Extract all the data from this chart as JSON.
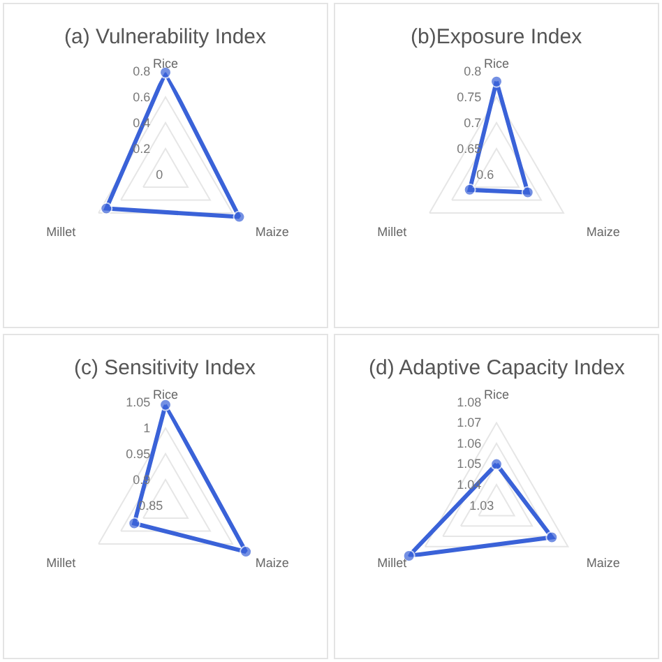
{
  "chart_data": [
    {
      "type": "radar",
      "title": "(a) Vulnerability Index",
      "categories": [
        "Rice",
        "Maize",
        "Millet"
      ],
      "series": [
        {
          "color": "#3a62d8",
          "values": [
            0.79,
            0.66,
            0.53
          ]
        }
      ],
      "ylim": [
        0,
        0.8
      ],
      "yticks": [
        0,
        0.2,
        0.4,
        0.6,
        0.8
      ],
      "grid": true,
      "marker": "circle"
    },
    {
      "type": "radar",
      "title": "(b)Exposure Index",
      "categories": [
        "Rice",
        "Maize",
        "Millet"
      ],
      "series": [
        {
          "color": "#3a62d8",
          "values": [
            0.78,
            0.67,
            0.66
          ]
        }
      ],
      "ylim": [
        0.6,
        0.8
      ],
      "yticks": [
        0.6,
        0.65,
        0.7,
        0.75,
        0.8
      ],
      "grid": true,
      "marker": "circle"
    },
    {
      "type": "radar",
      "title": "(c) Sensitivity Index",
      "categories": [
        "Rice",
        "Maize",
        "Millet"
      ],
      "series": [
        {
          "color": "#3a62d8",
          "values": [
            1.045,
            1.03,
            0.92
          ]
        }
      ],
      "ylim": [
        0.85,
        1.05
      ],
      "yticks": [
        0.85,
        0.9,
        0.95,
        1,
        1.05
      ],
      "grid": true,
      "marker": "circle"
    },
    {
      "type": "radar",
      "title": "(d) Adaptive Capacity Index",
      "categories": [
        "Rice",
        "Maize",
        "Millet"
      ],
      "series": [
        {
          "color": "#3a62d8",
          "values": [
            1.05,
            1.061,
            1.079
          ]
        }
      ],
      "ylim": [
        1.03,
        1.08
      ],
      "yticks": [
        1.03,
        1.04,
        1.05,
        1.06,
        1.07,
        1.08
      ],
      "grid": true,
      "marker": "circle"
    }
  ]
}
